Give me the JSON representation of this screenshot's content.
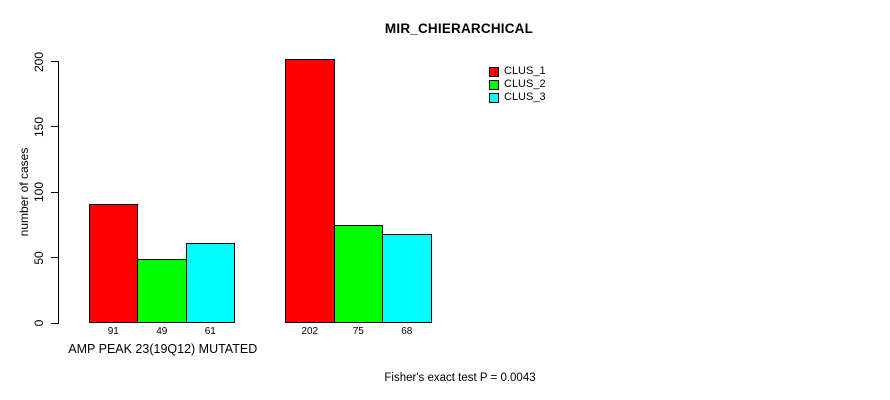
{
  "chart_data": {
    "type": "bar",
    "title": "MIR_CHIERARCHICAL",
    "ylabel": "number of cases",
    "ylim": [
      0,
      200
    ],
    "yticks": [
      0,
      50,
      100,
      150,
      200
    ],
    "categories": [
      "AMP PEAK 23(19Q12) MUTATED",
      ""
    ],
    "series": [
      {
        "name": "CLUS_1",
        "color": "#ff0000",
        "values": [
          91,
          202
        ]
      },
      {
        "name": "CLUS_2",
        "color": "#00ff00",
        "values": [
          49,
          75
        ]
      },
      {
        "name": "CLUS_3",
        "color": "#00ffff",
        "values": [
          61,
          68
        ]
      }
    ],
    "legend_position": "top-right",
    "annotation": "Fisher's exact test P = 0.0043",
    "grid": false,
    "background_color": "#ffffff",
    "bar_border_color": "#000000",
    "text_color": "#000000"
  }
}
